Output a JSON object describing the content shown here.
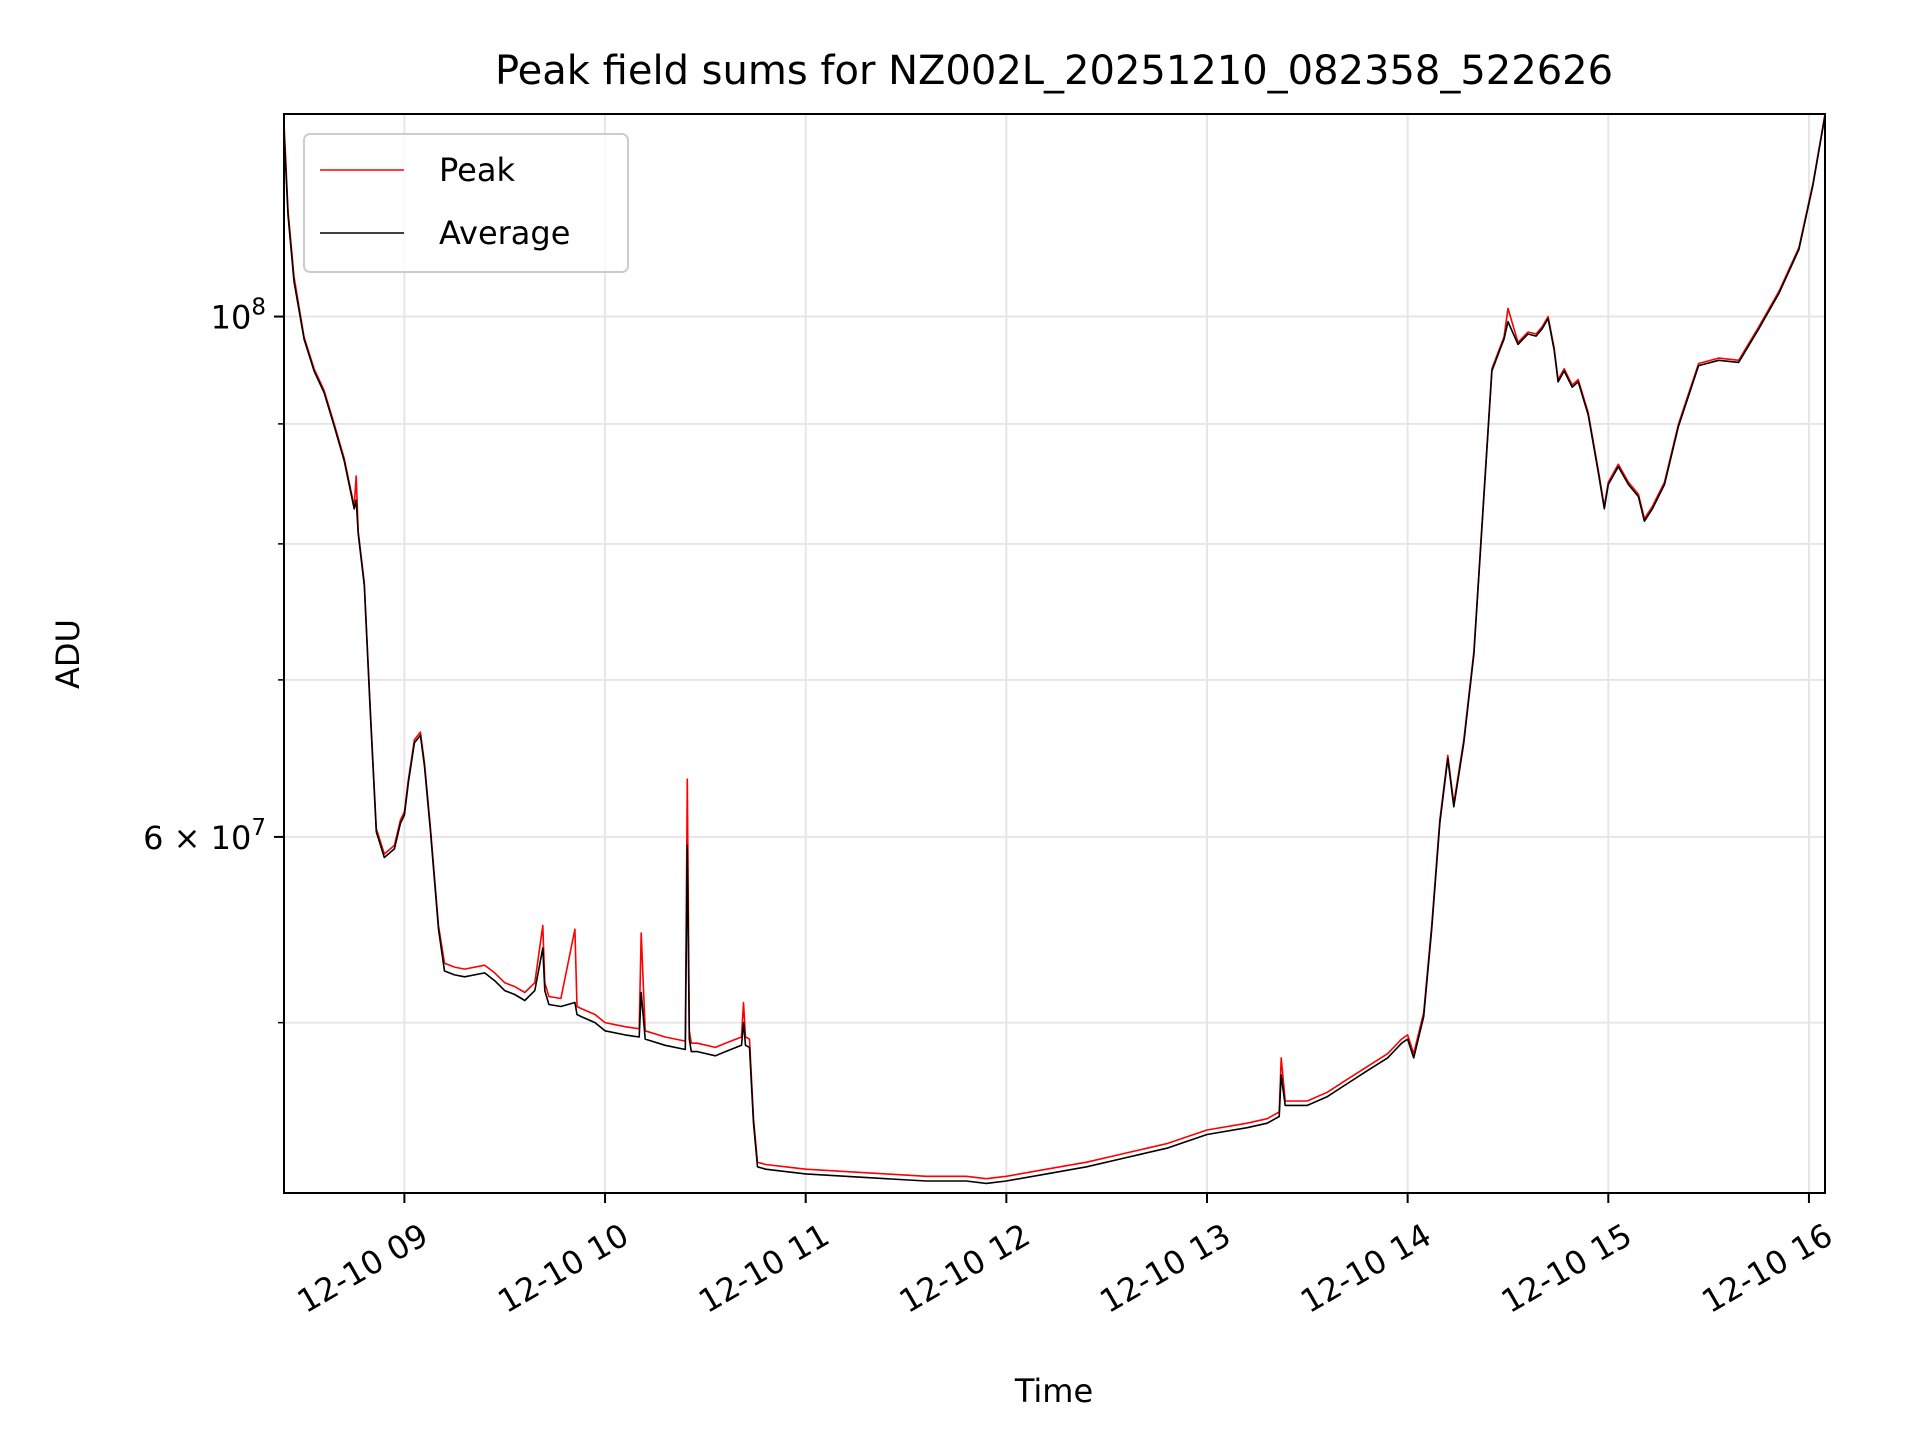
{
  "chart_data": {
    "type": "line",
    "title": "Peak field sums for NZ002L_20251210_082358_522626",
    "xlabel": "Time",
    "ylabel": "ADU",
    "yscale": "log",
    "xlim": [
      8.4,
      16.08
    ],
    "ylim": [
      42300000,
      122000000
    ],
    "x_ticks": [
      {
        "value": 9,
        "label": "12-10 09"
      },
      {
        "value": 10,
        "label": "12-10 10"
      },
      {
        "value": 11,
        "label": "12-10 11"
      },
      {
        "value": 12,
        "label": "12-10 12"
      },
      {
        "value": 13,
        "label": "12-10 13"
      },
      {
        "value": 14,
        "label": "12-10 14"
      },
      {
        "value": 15,
        "label": "12-10 15"
      },
      {
        "value": 16,
        "label": "12-10 16"
      }
    ],
    "y_major_ticks": [
      {
        "value": 100000000,
        "base": "10",
        "exp": "8"
      },
      {
        "value": 60000000,
        "base": "6 × 10",
        "exp": "7"
      }
    ],
    "y_minor_gridlines": [
      50000000,
      70000000,
      80000000,
      90000000
    ],
    "grid": true,
    "legend": {
      "position": "upper-left",
      "entries": [
        "Peak",
        "Average"
      ]
    },
    "series": [
      {
        "name": "Peak",
        "color": "#ff0000",
        "x": [
          8.4,
          8.42,
          8.45,
          8.5,
          8.55,
          8.6,
          8.65,
          8.7,
          8.75,
          8.76,
          8.77,
          8.8,
          8.83,
          8.86,
          8.9,
          8.95,
          8.98,
          9.0,
          9.02,
          9.05,
          9.08,
          9.1,
          9.13,
          9.17,
          9.2,
          9.25,
          9.3,
          9.4,
          9.45,
          9.5,
          9.55,
          9.6,
          9.65,
          9.69,
          9.7,
          9.72,
          9.78,
          9.85,
          9.86,
          9.88,
          9.95,
          10.0,
          10.1,
          10.17,
          10.18,
          10.2,
          10.3,
          10.4,
          10.41,
          10.42,
          10.43,
          10.46,
          10.55,
          10.6,
          10.68,
          10.69,
          10.7,
          10.72,
          10.74,
          10.76,
          10.8,
          10.9,
          11.0,
          11.2,
          11.4,
          11.6,
          11.8,
          11.9,
          12.0,
          12.2,
          12.4,
          12.6,
          12.8,
          13.0,
          13.2,
          13.3,
          13.36,
          13.37,
          13.39,
          13.5,
          13.6,
          13.7,
          13.8,
          13.9,
          13.97,
          14.0,
          14.03,
          14.08,
          14.12,
          14.16,
          14.2,
          14.23,
          14.28,
          14.33,
          14.38,
          14.42,
          14.46,
          14.48,
          14.5,
          14.55,
          14.6,
          14.64,
          14.67,
          14.7,
          14.73,
          14.75,
          14.78,
          14.82,
          14.85,
          14.9,
          14.95,
          14.98,
          15.0,
          15.05,
          15.1,
          15.15,
          15.18,
          15.22,
          15.28,
          15.35,
          15.45,
          15.55,
          15.65,
          15.75,
          15.85,
          15.95,
          16.02,
          16.08
        ],
        "values": [
          121000000,
          111000000,
          104000000,
          98000000,
          95000000,
          93000000,
          90000000,
          87000000,
          83000000,
          85500000,
          81000000,
          77000000,
          68000000,
          60500000,
          59000000,
          59500000,
          61000000,
          61500000,
          63500000,
          66000000,
          66500000,
          64500000,
          60500000,
          55000000,
          53000000,
          52800000,
          52700000,
          52900000,
          52500000,
          52000000,
          51800000,
          51500000,
          52000000,
          55000000,
          52000000,
          51300000,
          51200000,
          54800000,
          50800000,
          50700000,
          50400000,
          50000000,
          49800000,
          49700000,
          54600000,
          49600000,
          49300000,
          49100000,
          63500000,
          49600000,
          49000000,
          49000000,
          48800000,
          49000000,
          49300000,
          51000000,
          49300000,
          49200000,
          45500000,
          43600000,
          43500000,
          43400000,
          43300000,
          43200000,
          43100000,
          43000000,
          43000000,
          42900000,
          43000000,
          43300000,
          43600000,
          44000000,
          44400000,
          45000000,
          45300000,
          45500000,
          45800000,
          48300000,
          46300000,
          46300000,
          46700000,
          47300000,
          47900000,
          48500000,
          49200000,
          49400000,
          48500000,
          50500000,
          55000000,
          61000000,
          65000000,
          62000000,
          66000000,
          72000000,
          84000000,
          95000000,
          97000000,
          98000000,
          100800000,
          97500000,
          98500000,
          98300000,
          99000000,
          100000000,
          97000000,
          94000000,
          95000000,
          93500000,
          94000000,
          91000000,
          86000000,
          83000000,
          85000000,
          86500000,
          85000000,
          84000000,
          82000000,
          83000000,
          85000000,
          90000000,
          95500000,
          96000000,
          95800000,
          99000000,
          102500000,
          107000000,
          114000000,
          122000000
        ]
      },
      {
        "name": "Average",
        "color": "#000000",
        "x": [
          8.4,
          8.42,
          8.45,
          8.5,
          8.55,
          8.6,
          8.65,
          8.7,
          8.75,
          8.76,
          8.77,
          8.8,
          8.83,
          8.86,
          8.9,
          8.95,
          8.98,
          9.0,
          9.02,
          9.05,
          9.08,
          9.1,
          9.13,
          9.17,
          9.2,
          9.25,
          9.3,
          9.4,
          9.45,
          9.5,
          9.55,
          9.6,
          9.65,
          9.69,
          9.7,
          9.72,
          9.78,
          9.85,
          9.86,
          9.88,
          9.95,
          10.0,
          10.1,
          10.17,
          10.18,
          10.2,
          10.3,
          10.4,
          10.41,
          10.42,
          10.43,
          10.46,
          10.55,
          10.6,
          10.68,
          10.69,
          10.7,
          10.72,
          10.74,
          10.76,
          10.8,
          10.9,
          11.0,
          11.2,
          11.4,
          11.6,
          11.8,
          11.9,
          12.0,
          12.2,
          12.4,
          12.6,
          12.8,
          13.0,
          13.2,
          13.3,
          13.36,
          13.37,
          13.39,
          13.5,
          13.6,
          13.7,
          13.8,
          13.9,
          13.97,
          14.0,
          14.03,
          14.08,
          14.12,
          14.16,
          14.2,
          14.23,
          14.28,
          14.33,
          14.38,
          14.42,
          14.46,
          14.48,
          14.5,
          14.55,
          14.6,
          14.64,
          14.67,
          14.7,
          14.73,
          14.75,
          14.78,
          14.82,
          14.85,
          14.9,
          14.95,
          14.98,
          15.0,
          15.05,
          15.1,
          15.15,
          15.18,
          15.22,
          15.28,
          15.35,
          15.45,
          15.55,
          15.65,
          15.75,
          15.85,
          15.95,
          16.02,
          16.08
        ],
        "values": [
          120000000,
          110500000,
          103500000,
          97800000,
          94800000,
          92800000,
          89800000,
          86800000,
          82800000,
          83500000,
          80800000,
          76800000,
          67800000,
          60300000,
          58800000,
          59300000,
          60800000,
          61300000,
          63300000,
          65800000,
          66300000,
          64300000,
          60300000,
          54800000,
          52600000,
          52400000,
          52300000,
          52500000,
          52100000,
          51600000,
          51400000,
          51100000,
          51600000,
          53800000,
          51600000,
          50900000,
          50800000,
          51000000,
          50400000,
          50300000,
          50000000,
          49600000,
          49400000,
          49300000,
          51500000,
          49200000,
          48900000,
          48700000,
          59500000,
          49200000,
          48600000,
          48600000,
          48400000,
          48600000,
          48900000,
          50000000,
          48900000,
          48800000,
          45300000,
          43400000,
          43300000,
          43200000,
          43100000,
          43000000,
          42900000,
          42800000,
          42800000,
          42700000,
          42800000,
          43100000,
          43400000,
          43800000,
          44200000,
          44800000,
          45100000,
          45300000,
          45600000,
          47500000,
          46100000,
          46100000,
          46500000,
          47100000,
          47700000,
          48300000,
          49000000,
          49200000,
          48300000,
          50300000,
          54800000,
          60800000,
          64800000,
          61800000,
          65800000,
          71800000,
          83800000,
          94800000,
          96800000,
          97800000,
          99500000,
          97300000,
          98300000,
          98100000,
          98800000,
          99800000,
          96800000,
          93800000,
          94800000,
          93300000,
          93800000,
          90800000,
          85800000,
          82800000,
          84800000,
          86300000,
          84800000,
          83800000,
          81800000,
          82800000,
          84800000,
          89800000,
          95300000,
          95800000,
          95600000,
          98800000,
          102300000,
          106800000,
          113800000,
          121800000
        ]
      }
    ]
  }
}
